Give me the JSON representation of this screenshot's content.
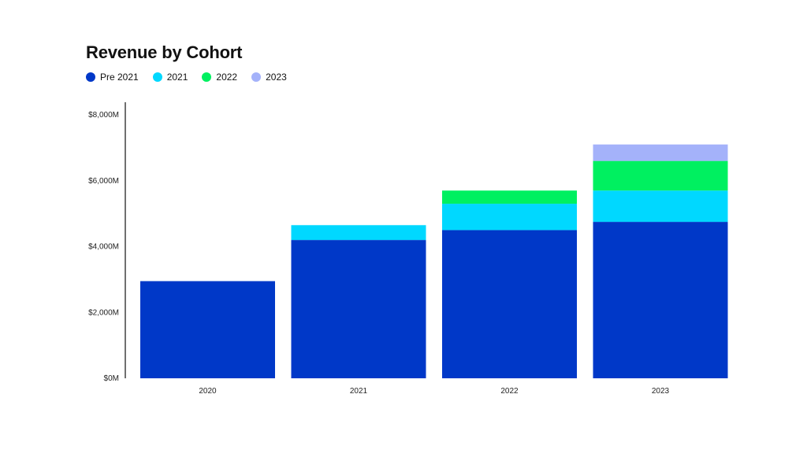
{
  "chart_data": {
    "type": "bar",
    "stacked": true,
    "title": "Revenue by Cohort",
    "categories": [
      "2020",
      "2021",
      "2022",
      "2023"
    ],
    "series": [
      {
        "name": "Pre 2021",
        "color": "#0038C8",
        "values": [
          2950,
          4200,
          4500,
          4750
        ]
      },
      {
        "name": "2021",
        "color": "#00D8FF",
        "values": [
          0,
          450,
          800,
          950
        ]
      },
      {
        "name": "2022",
        "color": "#00F060",
        "values": [
          0,
          0,
          400,
          900
        ]
      },
      {
        "name": "2023",
        "color": "#A4B2FA",
        "values": [
          0,
          0,
          0,
          500
        ]
      }
    ],
    "yticks": [
      "$0M",
      "$2,000M",
      "$4,000M",
      "$6,000M",
      "$8,000M"
    ],
    "ytick_values": [
      0,
      2000,
      4000,
      6000,
      8000
    ],
    "ylim": [
      0,
      8000
    ],
    "legend_position": "top-left",
    "grid": false
  }
}
